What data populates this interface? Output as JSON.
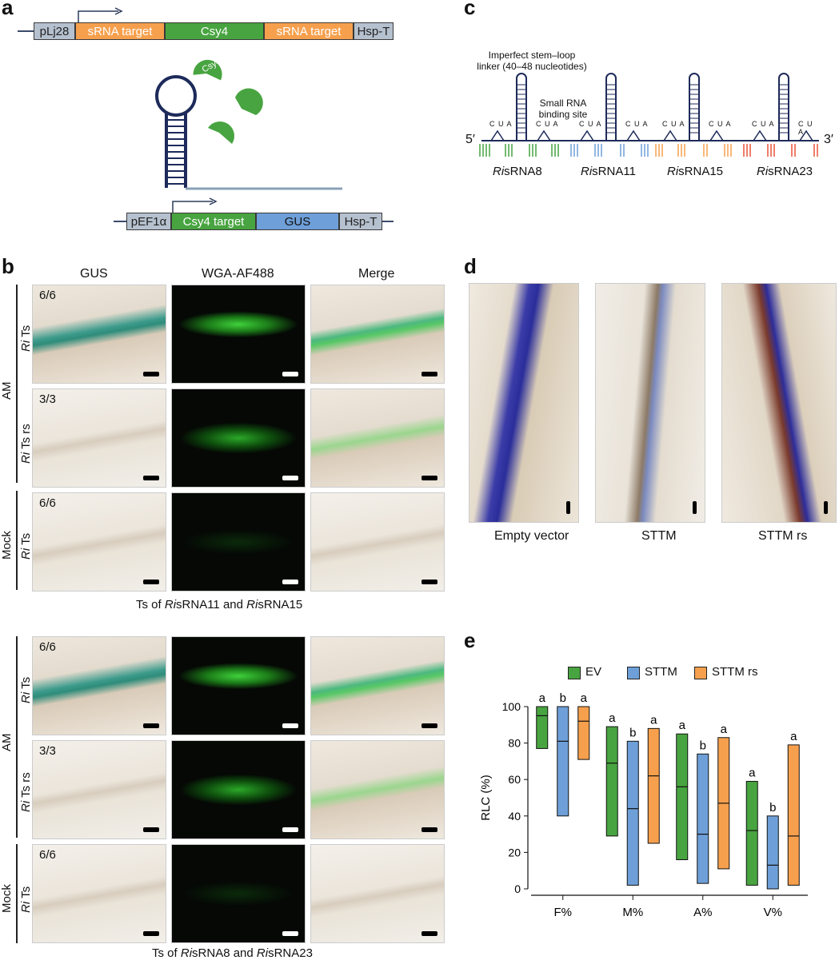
{
  "panels": {
    "a": "a",
    "b": "b",
    "c": "c",
    "d": "d",
    "e": "e"
  },
  "panel_a": {
    "construct1": [
      "pLj28",
      "sRNA target",
      "Csy4",
      "sRNA target",
      "Hsp-T"
    ],
    "protein_label": "Csy4",
    "construct2": [
      "pEF1α",
      "Csy4 target",
      "GUS",
      "Hsp-T"
    ]
  },
  "panel_b": {
    "columns": [
      "GUS",
      "WGA-AF488",
      "Merge"
    ],
    "group_label": "AM",
    "mock_label": "Mock",
    "top_rows": [
      {
        "frac": "6/6",
        "label_italic": "Ri",
        "label_rest": " Ts"
      },
      {
        "frac": "3/3",
        "label_italic": "Ri",
        "label_rest": " Ts rs"
      },
      {
        "frac": "6/6",
        "label_italic": "Ri",
        "label_rest": " Ts"
      }
    ],
    "top_caption_parts": [
      "Ts of ",
      "Ri",
      "sRNA11 and ",
      "Ri",
      "sRNA15"
    ],
    "bottom_rows": [
      {
        "frac": "6/6",
        "label_italic": "Ri",
        "label_rest": " Ts"
      },
      {
        "frac": "3/3",
        "label_italic": "Ri",
        "label_rest": " Ts rs"
      },
      {
        "frac": "6/6",
        "label_italic": "Ri",
        "label_rest": " Ts"
      }
    ],
    "bottom_caption_parts": [
      "Ts of ",
      "Ri",
      "sRNA8 and ",
      "Ri",
      "sRNA23"
    ]
  },
  "panel_c": {
    "linker_label_1": "Imperfect stem–loop",
    "linker_label_2": "linker (40–48 nucleotides)",
    "binding_label_1": "Small RNA",
    "binding_label_2": "binding site",
    "five_prime": "5′",
    "three_prime": "3′",
    "bulge_letters": "C U A",
    "srnas": [
      {
        "italic": "Ri",
        "rest": "sRNA8",
        "color": "#48a440"
      },
      {
        "italic": "Ri",
        "rest": "sRNA11",
        "color": "#6e9fd8"
      },
      {
        "italic": "Ri",
        "rest": "sRNA15",
        "color": "#f6a04d"
      },
      {
        "italic": "Ri",
        "rest": "sRNA23",
        "color": "#e8553a"
      }
    ]
  },
  "panel_d": {
    "labels": [
      "Empty vector",
      "STTM",
      "STTM rs"
    ]
  },
  "panel_e": {
    "legend": [
      {
        "name": "EV",
        "color": "#48a440"
      },
      {
        "name": "STTM",
        "color": "#6e9fd8"
      },
      {
        "name": "STTM rs",
        "color": "#f6a04d"
      }
    ]
  },
  "chart_data": {
    "type": "box",
    "ylabel": "RLC (%)",
    "xlabel": "",
    "ylim": [
      0,
      100
    ],
    "yticks": [
      0,
      20,
      40,
      60,
      80,
      100
    ],
    "categories": [
      "F%",
      "M%",
      "A%",
      "V%"
    ],
    "series": [
      {
        "name": "EV",
        "color": "#48a440",
        "boxes": [
          {
            "low": 77,
            "high": 100,
            "median": 95
          },
          {
            "low": 29,
            "high": 89,
            "median": 69
          },
          {
            "low": 16,
            "high": 85,
            "median": 56
          },
          {
            "low": 2,
            "high": 59,
            "median": 32
          }
        ],
        "letters": [
          "a",
          "a",
          "a",
          "a"
        ]
      },
      {
        "name": "STTM",
        "color": "#6e9fd8",
        "boxes": [
          {
            "low": 40,
            "high": 100,
            "median": 81
          },
          {
            "low": 2,
            "high": 81,
            "median": 44
          },
          {
            "low": 3,
            "high": 74,
            "median": 30
          },
          {
            "low": 0,
            "high": 40,
            "median": 13
          }
        ],
        "letters": [
          "b",
          "b",
          "b",
          "b"
        ]
      },
      {
        "name": "STTM rs",
        "color": "#f6a04d",
        "boxes": [
          {
            "low": 71,
            "high": 100,
            "median": 92
          },
          {
            "low": 25,
            "high": 88,
            "median": 62
          },
          {
            "low": 11,
            "high": 83,
            "median": 47
          },
          {
            "low": 2,
            "high": 79,
            "median": 29
          }
        ],
        "letters": [
          "a",
          "a",
          "a",
          "a"
        ]
      }
    ]
  }
}
